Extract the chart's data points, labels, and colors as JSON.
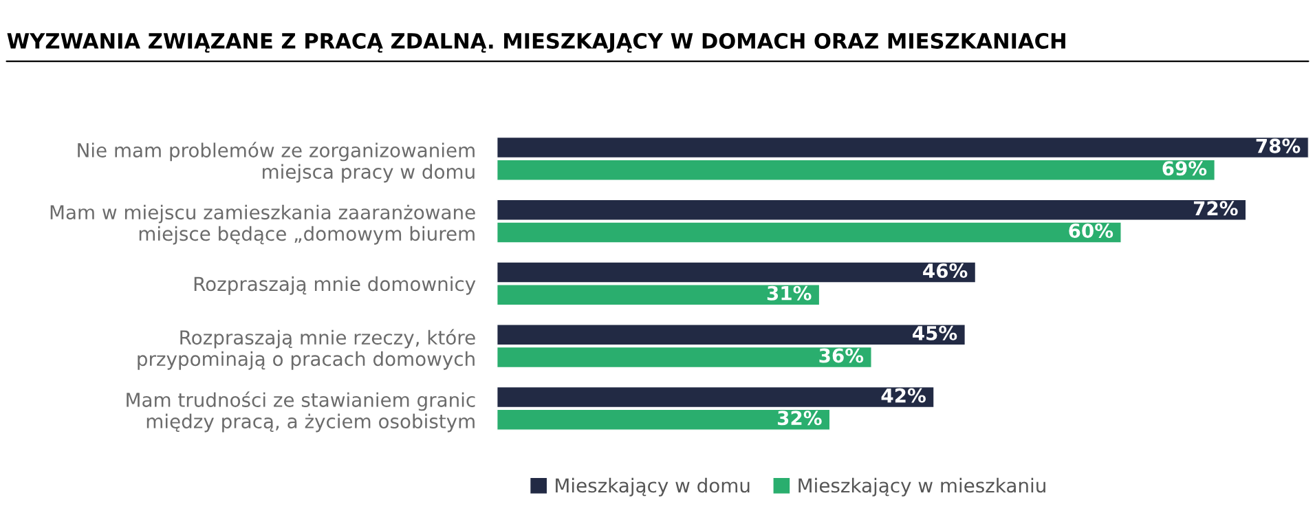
{
  "chart_data": {
    "type": "bar",
    "orientation": "horizontal",
    "title": "WYZWANIA ZWIĄZANE Z PRACĄ ZDALNĄ. MIESZKAJĄCY W DOMACH ORAZ MIESZKANIACH",
    "categories": [
      "Nie mam problemów ze zorganizowaniem\nmiejsca pracy w domu",
      "Mam w miejscu zamieszkania zaaranżowane\nmiejsce będące „domowym biurem",
      "Rozpraszają mnie domownicy",
      "Rozpraszają mnie rzeczy, które\nprzypominają o pracach domowych",
      "Mam trudności ze stawianiem granic\nmiędzy pracą, a życiem osobistym"
    ],
    "series": [
      {
        "name": "Mieszkający w domu",
        "color": "#222a44",
        "values": [
          78,
          72,
          46,
          45,
          42
        ],
        "value_labels": [
          "78%",
          "72%",
          "46%",
          "45%",
          "42%"
        ]
      },
      {
        "name": "Mieszkający w mieszkaniu",
        "color": "#2aae6e",
        "values": [
          69,
          60,
          31,
          36,
          32
        ],
        "value_labels": [
          "69%",
          "60%",
          "31%",
          "36%",
          "32%"
        ]
      }
    ],
    "legend": "bottom",
    "grid": false
  }
}
